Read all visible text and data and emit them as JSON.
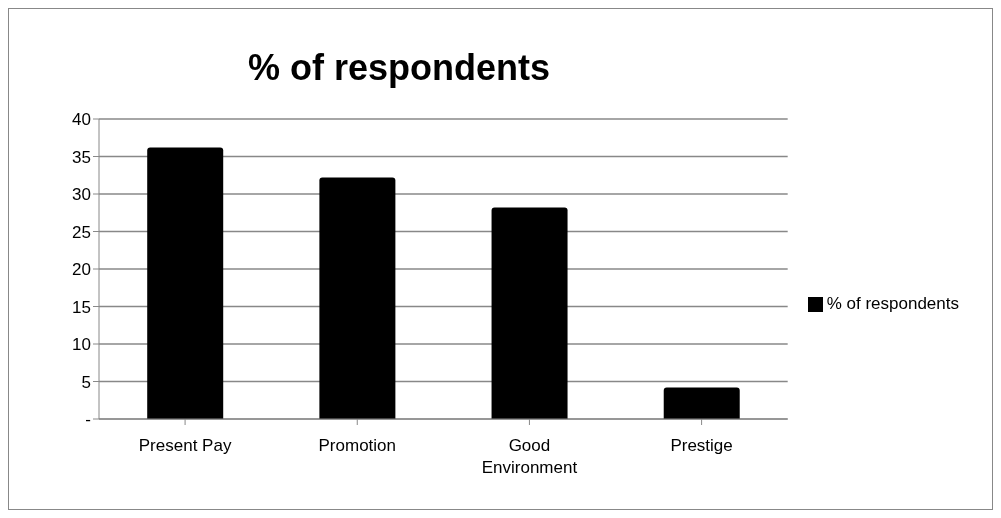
{
  "chart_data": {
    "type": "bar",
    "title": "% of respondents",
    "categories": [
      "Present Pay",
      "Promotion",
      "Good Environment",
      "Prestige"
    ],
    "series": [
      {
        "name": "% of respondents",
        "color": "#000000",
        "values": [
          36.2,
          32.2,
          28.2,
          4.2
        ]
      }
    ],
    "ylim": [
      0,
      40
    ],
    "yticks": [
      {
        "value": 0,
        "label": "-"
      },
      5,
      10,
      15,
      20,
      25,
      30,
      35,
      40
    ],
    "grid": "y",
    "legend": "right"
  }
}
